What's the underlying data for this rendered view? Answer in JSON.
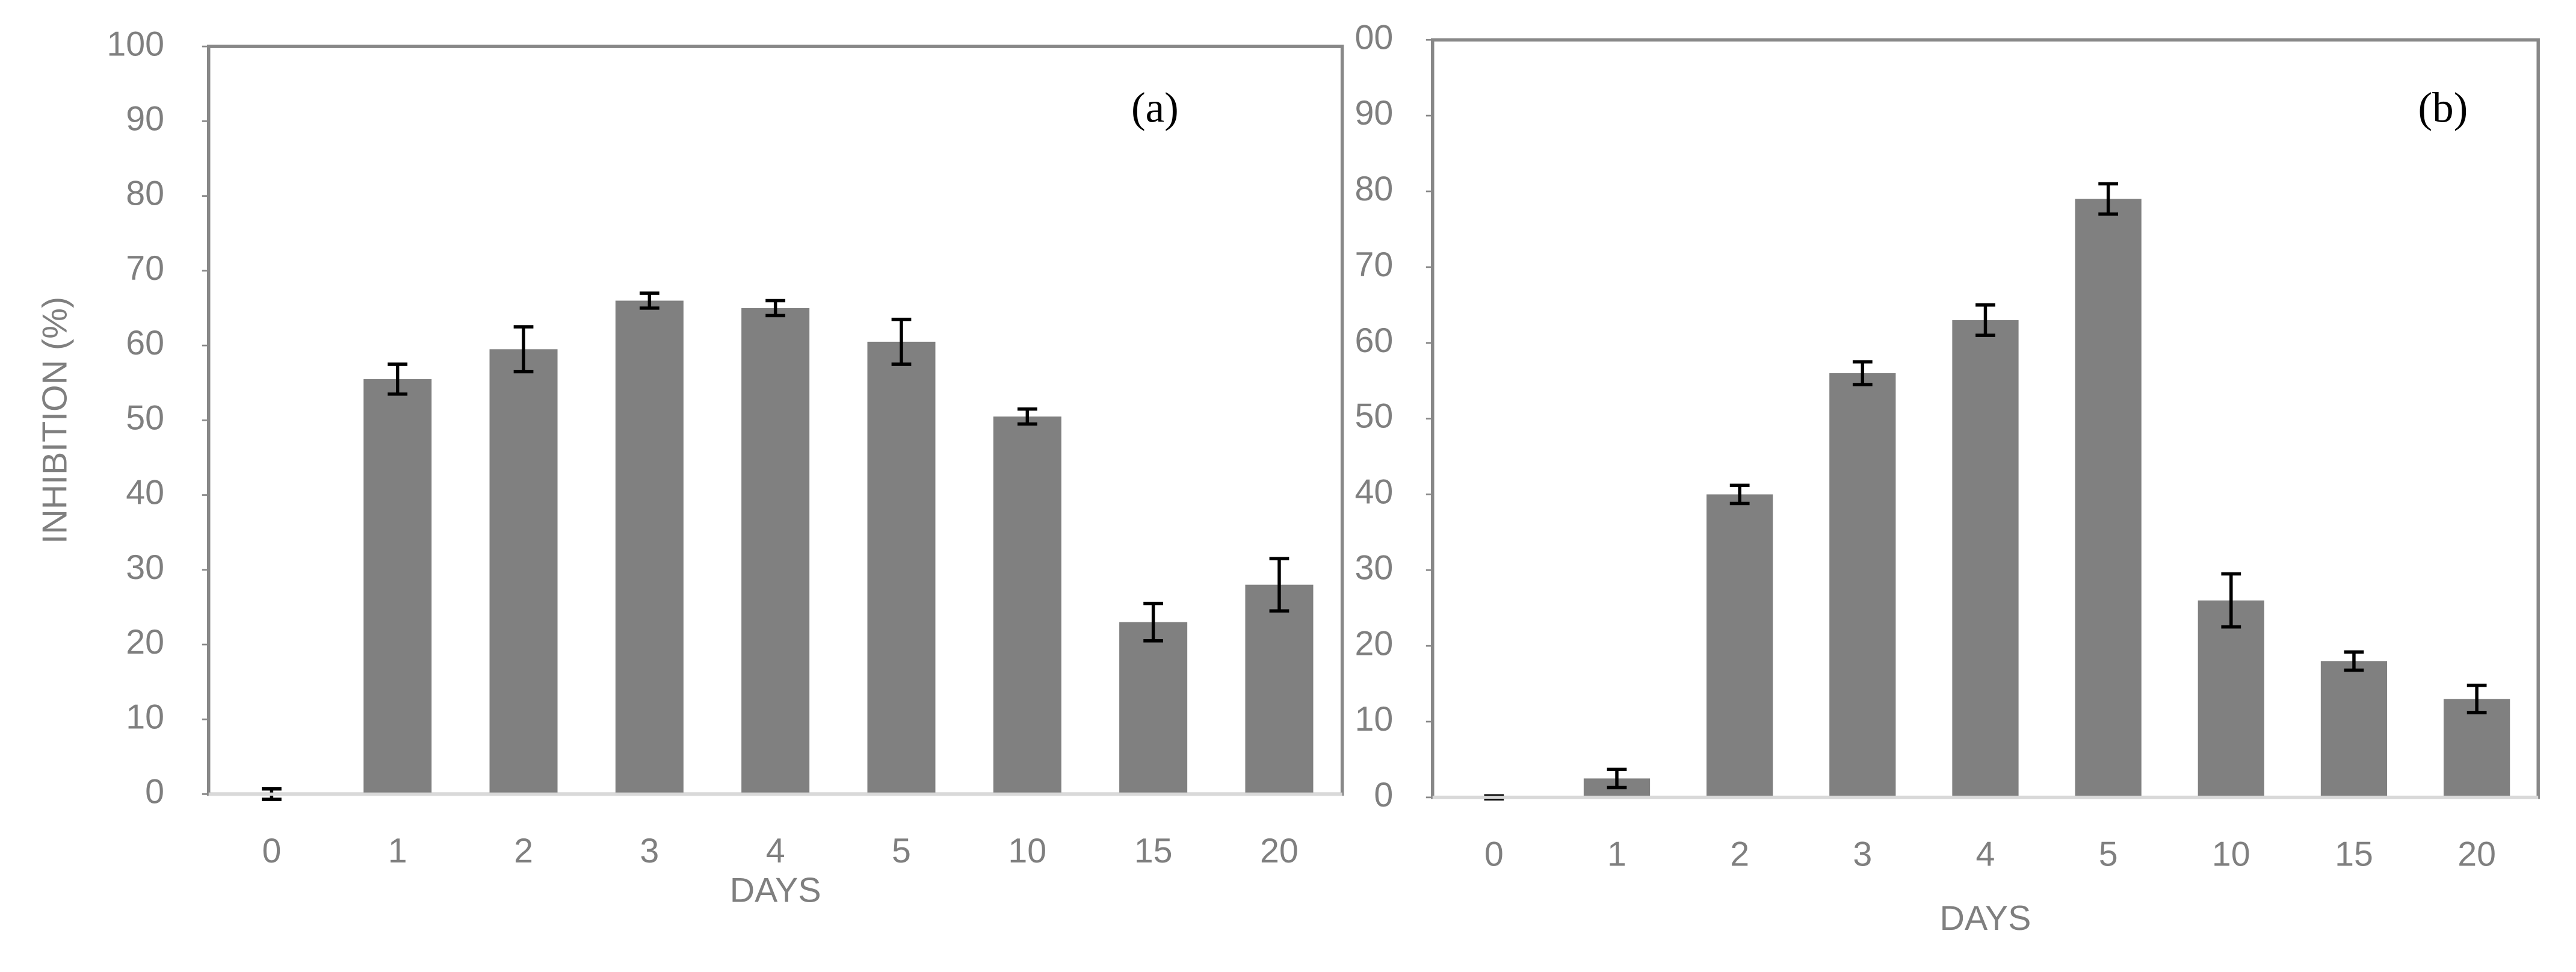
{
  "chart_data": [
    {
      "type": "bar",
      "annotation": "(a)",
      "x_label": "DAYS",
      "y_label": "INHIBITION (%)",
      "categories": [
        "0",
        "1",
        "2",
        "3",
        "4",
        "5",
        "10",
        "15",
        "20"
      ],
      "values": [
        0,
        55.5,
        59.5,
        66,
        65,
        60.5,
        50.5,
        23,
        28
      ],
      "errors": [
        0.7,
        2,
        3,
        1,
        1,
        3,
        1,
        2.5,
        3.5
      ],
      "color": "#808080",
      "ylim": [
        0,
        100
      ],
      "yticks": [
        0,
        10,
        20,
        30,
        40,
        50,
        60,
        70,
        80,
        90,
        100
      ]
    },
    {
      "type": "bar",
      "annotation": "(b)",
      "x_label": "DAYS",
      "categories": [
        "0",
        "1",
        "2",
        "3",
        "4",
        "5",
        "10",
        "15",
        "20"
      ],
      "values": [
        0,
        2.5,
        40,
        56,
        63,
        79,
        26,
        18,
        13
      ],
      "errors": [
        0.2,
        1.2,
        1.2,
        1.5,
        2,
        2,
        3.5,
        1.2,
        1.8
      ],
      "color": "#808080",
      "ylim": [
        0,
        100
      ],
      "yticks": [
        0,
        10,
        20,
        30,
        40,
        50,
        60,
        70,
        80,
        90,
        {
          "value": 100,
          "label": "00"
        }
      ]
    }
  ]
}
